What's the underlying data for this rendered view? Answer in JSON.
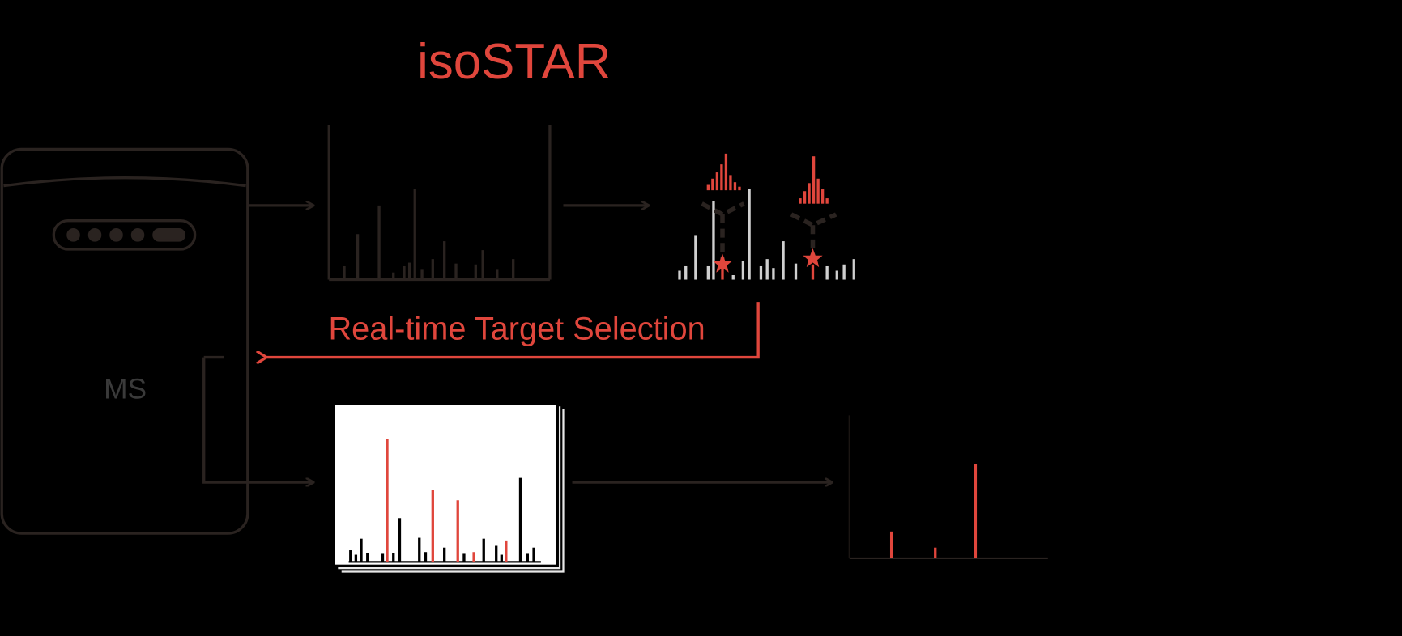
{
  "title": "isoSTAR",
  "instrument": "MS",
  "feedback_label": "Real-time Target Selection"
}
